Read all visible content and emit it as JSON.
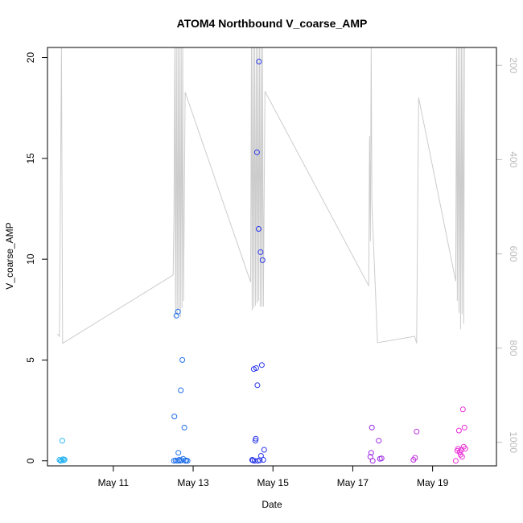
{
  "chart_data": {
    "type": "scatter",
    "title": "ATOM4 Northbound V_coarse_AMP",
    "xlabel": "Date",
    "ylabel": "V_coarse_AMP",
    "xlim": [
      9.35,
      20.6
    ],
    "ylim": [
      -0.25,
      20.5
    ],
    "y2lim": [
      1050,
      162
    ],
    "x_ticks": [
      11,
      13,
      15,
      17,
      19
    ],
    "x_tick_labels": [
      "May 11",
      "May 13",
      "May 15",
      "May 17",
      "May 19"
    ],
    "y_ticks": [
      0,
      5,
      10,
      15,
      20
    ],
    "y_tick_labels": [
      "0",
      "5",
      "10",
      "15",
      "20"
    ],
    "y2_ticks": [
      200,
      400,
      600,
      800,
      1000
    ],
    "y2_tick_labels": [
      "200",
      "400",
      "600",
      "800",
      "1000"
    ],
    "series": [
      {
        "name": "V_coarse_AMP",
        "kind": "points",
        "points": [
          {
            "x": 9.65,
            "y": 0.05,
            "c": "#26b3f2"
          },
          {
            "x": 9.68,
            "y": 0.0,
            "c": "#26b3f2"
          },
          {
            "x": 9.7,
            "y": 0.02,
            "c": "#26b3f2"
          },
          {
            "x": 9.72,
            "y": 1.0,
            "c": "#26b3f2"
          },
          {
            "x": 9.74,
            "y": 0.08,
            "c": "#26b3f2"
          },
          {
            "x": 9.76,
            "y": 0.03,
            "c": "#26b3f2"
          },
          {
            "x": 9.78,
            "y": 0.06,
            "c": "#26b3f2"
          },
          {
            "x": 12.52,
            "y": 0.0,
            "c": "#1f6fea"
          },
          {
            "x": 12.53,
            "y": 2.2,
            "c": "#1f6fea"
          },
          {
            "x": 12.56,
            "y": 0.02,
            "c": "#1f6fea"
          },
          {
            "x": 12.58,
            "y": 7.2,
            "c": "#1f6fea"
          },
          {
            "x": 12.6,
            "y": 0.0,
            "c": "#1f6fea"
          },
          {
            "x": 12.62,
            "y": 7.4,
            "c": "#1f6fea"
          },
          {
            "x": 12.63,
            "y": 0.4,
            "c": "#1f6fea"
          },
          {
            "x": 12.65,
            "y": 0.05,
            "c": "#1f6fea"
          },
          {
            "x": 12.67,
            "y": 0.0,
            "c": "#1f6fea"
          },
          {
            "x": 12.69,
            "y": 3.5,
            "c": "#1f6fea"
          },
          {
            "x": 12.71,
            "y": 0.03,
            "c": "#1f6fea"
          },
          {
            "x": 12.73,
            "y": 5.0,
            "c": "#1f6fea"
          },
          {
            "x": 12.75,
            "y": 0.1,
            "c": "#1f6fea"
          },
          {
            "x": 12.78,
            "y": 1.65,
            "c": "#1f6fea"
          },
          {
            "x": 12.8,
            "y": 0.0,
            "c": "#1f6fea"
          },
          {
            "x": 12.83,
            "y": 0.02,
            "c": "#1f6fea"
          },
          {
            "x": 12.86,
            "y": 0.0,
            "c": "#1f6fea"
          },
          {
            "x": 14.48,
            "y": 0.05,
            "c": "#2a36ea"
          },
          {
            "x": 14.5,
            "y": 0.02,
            "c": "#2a36ea"
          },
          {
            "x": 14.52,
            "y": 4.55,
            "c": "#2a36ea"
          },
          {
            "x": 14.54,
            "y": 0.0,
            "c": "#2a36ea"
          },
          {
            "x": 14.56,
            "y": 1.0,
            "c": "#2a36ea"
          },
          {
            "x": 14.57,
            "y": 1.1,
            "c": "#2a36ea"
          },
          {
            "x": 14.58,
            "y": 4.6,
            "c": "#2a36ea"
          },
          {
            "x": 14.6,
            "y": 15.3,
            "c": "#2a36ea"
          },
          {
            "x": 14.61,
            "y": 3.75,
            "c": "#2a36ea"
          },
          {
            "x": 14.62,
            "y": 0.0,
            "c": "#2a36ea"
          },
          {
            "x": 14.64,
            "y": 11.5,
            "c": "#2a36ea"
          },
          {
            "x": 14.65,
            "y": 19.8,
            "c": "#2a36ea"
          },
          {
            "x": 14.67,
            "y": 0.03,
            "c": "#2a36ea"
          },
          {
            "x": 14.69,
            "y": 10.35,
            "c": "#2a36ea"
          },
          {
            "x": 14.7,
            "y": 0.25,
            "c": "#2a36ea"
          },
          {
            "x": 14.72,
            "y": 4.75,
            "c": "#2a36ea"
          },
          {
            "x": 14.74,
            "y": 9.95,
            "c": "#2a36ea"
          },
          {
            "x": 14.76,
            "y": 0.05,
            "c": "#2a36ea"
          },
          {
            "x": 14.78,
            "y": 0.55,
            "c": "#2a36ea"
          },
          {
            "x": 17.44,
            "y": 0.2,
            "c": "#9b27e6"
          },
          {
            "x": 17.46,
            "y": 0.4,
            "c": "#9b27e6"
          },
          {
            "x": 17.48,
            "y": 1.65,
            "c": "#9b27e6"
          },
          {
            "x": 17.5,
            "y": 0.0,
            "c": "#9b27e6"
          },
          {
            "x": 17.65,
            "y": 1.0,
            "c": "#9b27e6"
          },
          {
            "x": 17.68,
            "y": 0.1,
            "c": "#9b27e6"
          },
          {
            "x": 17.72,
            "y": 0.12,
            "c": "#9b27e6"
          },
          {
            "x": 18.52,
            "y": 0.05,
            "c": "#c12ee0"
          },
          {
            "x": 18.56,
            "y": 0.15,
            "c": "#c12ee0"
          },
          {
            "x": 18.6,
            "y": 1.45,
            "c": "#c12ee0"
          },
          {
            "x": 19.58,
            "y": 0.0,
            "c": "#ea2cd6"
          },
          {
            "x": 19.62,
            "y": 0.5,
            "c": "#ea2cd6"
          },
          {
            "x": 19.64,
            "y": 0.6,
            "c": "#ea2cd6"
          },
          {
            "x": 19.66,
            "y": 1.5,
            "c": "#ea2cd6"
          },
          {
            "x": 19.68,
            "y": 0.45,
            "c": "#ea2cd6"
          },
          {
            "x": 19.7,
            "y": 0.3,
            "c": "#ea2cd6"
          },
          {
            "x": 19.72,
            "y": 0.55,
            "c": "#ea2cd6"
          },
          {
            "x": 19.74,
            "y": 0.2,
            "c": "#ea2cd6"
          },
          {
            "x": 19.76,
            "y": 2.55,
            "c": "#ea2cd6"
          },
          {
            "x": 19.78,
            "y": 0.7,
            "c": "#ea2cd6"
          },
          {
            "x": 19.8,
            "y": 1.65,
            "c": "#ea2cd6"
          },
          {
            "x": 19.82,
            "y": 0.6,
            "c": "#ea2cd6"
          }
        ]
      },
      {
        "name": "secondary-axis-line",
        "kind": "line",
        "axis": "right",
        "color": "#cccccc",
        "x": [
          9.6,
          9.65,
          9.7,
          9.73,
          12.5,
          12.52,
          12.54,
          12.56,
          12.58,
          12.6,
          12.62,
          12.64,
          12.66,
          12.68,
          12.7,
          12.72,
          12.74,
          12.76,
          12.8,
          14.44,
          14.46,
          14.48,
          14.5,
          14.52,
          14.54,
          14.56,
          14.58,
          14.6,
          14.62,
          14.64,
          14.66,
          14.68,
          14.7,
          14.72,
          14.74,
          14.76,
          14.8,
          17.4,
          17.42,
          17.44,
          17.46,
          17.48,
          17.62,
          17.65,
          18.55,
          18.6,
          18.65,
          19.58,
          19.6,
          19.62,
          19.64,
          19.66,
          19.68,
          19.7,
          19.72,
          19.74,
          19.76,
          19.78,
          19.8
        ],
        "y": [
          770,
          775,
          163,
          790,
          645,
          520,
          162,
          735,
          162,
          730,
          162,
          720,
          162,
          735,
          162,
          715,
          162,
          700,
          257,
          660,
          162,
          720,
          162,
          715,
          162,
          710,
          162,
          705,
          162,
          700,
          162,
          712,
          162,
          712,
          162,
          712,
          255,
          668,
          350,
          573,
          162,
          495,
          788,
          788,
          775,
          790,
          268,
          658,
          162,
          700,
          162,
          725,
          162,
          760,
          162,
          728,
          162,
          748,
          162
        ]
      }
    ]
  }
}
